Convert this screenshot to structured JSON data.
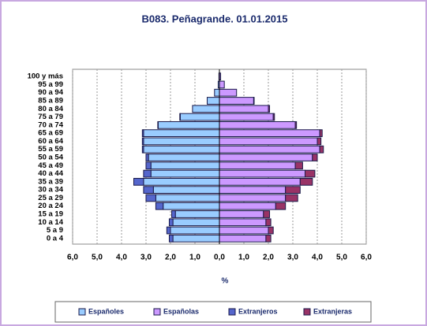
{
  "chart_data": {
    "type": "pyramid",
    "title": "B083. Peñagrande. 01.01.2015",
    "x_label": "%",
    "categories": [
      "0 a 4",
      "5 a 9",
      "10 a 14",
      "15 a 19",
      "20 a 24",
      "25 a 29",
      "30 a 34",
      "35 a 39",
      "40 a 44",
      "45 a 49",
      "50 a 54",
      "55 a 59",
      "60 a 64",
      "65 a 69",
      "70 a 74",
      "75 a 79",
      "80 a 84",
      "85 a 89",
      "90 a 94",
      "95 a 99",
      "100 y más"
    ],
    "series": [
      {
        "name": "Españoles",
        "color": "#99ccff",
        "values": [
          -1.9,
          -2.0,
          -1.9,
          -1.8,
          -2.3,
          -2.6,
          -2.7,
          -3.1,
          -2.8,
          -2.8,
          -2.9,
          -3.1,
          -3.1,
          -3.1,
          -2.5,
          -1.6,
          -1.1,
          -0.5,
          -0.2,
          -0.05,
          -0.02
        ]
      },
      {
        "name": "Españolas",
        "color": "#cc99ff",
        "values": [
          1.9,
          2.0,
          1.9,
          1.8,
          2.3,
          2.7,
          2.7,
          3.3,
          3.5,
          3.1,
          3.8,
          4.1,
          4.0,
          4.1,
          3.1,
          2.2,
          2.0,
          1.4,
          0.7,
          0.2,
          0.05
        ]
      },
      {
        "name": "Extranjeros",
        "color": "#5566cc",
        "values": [
          -0.15,
          -0.15,
          -0.15,
          -0.15,
          -0.3,
          -0.4,
          -0.4,
          -0.4,
          -0.3,
          -0.2,
          -0.1,
          -0.05,
          -0.05,
          -0.05,
          -0.02,
          -0.02,
          0,
          0,
          0,
          0,
          0
        ]
      },
      {
        "name": "Extranjeras",
        "color": "#993366",
        "values": [
          0.2,
          0.2,
          0.2,
          0.25,
          0.4,
          0.5,
          0.6,
          0.5,
          0.4,
          0.3,
          0.2,
          0.15,
          0.15,
          0.1,
          0.05,
          0.05,
          0.05,
          0.02,
          0,
          0,
          0
        ]
      }
    ],
    "xlim": [
      -6,
      6
    ],
    "xticks": [
      {
        "value": -6,
        "label": "6,0"
      },
      {
        "value": -5,
        "label": "5,0"
      },
      {
        "value": -4,
        "label": "4,0"
      },
      {
        "value": -3,
        "label": "3,0"
      },
      {
        "value": -2,
        "label": "2,0"
      },
      {
        "value": -1,
        "label": "1,0"
      },
      {
        "value": 0,
        "label": "0,0"
      },
      {
        "value": 1,
        "label": "1,0"
      },
      {
        "value": 2,
        "label": "2,0"
      },
      {
        "value": 3,
        "label": "3,0"
      },
      {
        "value": 4,
        "label": "4,0"
      },
      {
        "value": 5,
        "label": "5,0"
      },
      {
        "value": 6,
        "label": "6,0"
      }
    ],
    "grid": true
  }
}
